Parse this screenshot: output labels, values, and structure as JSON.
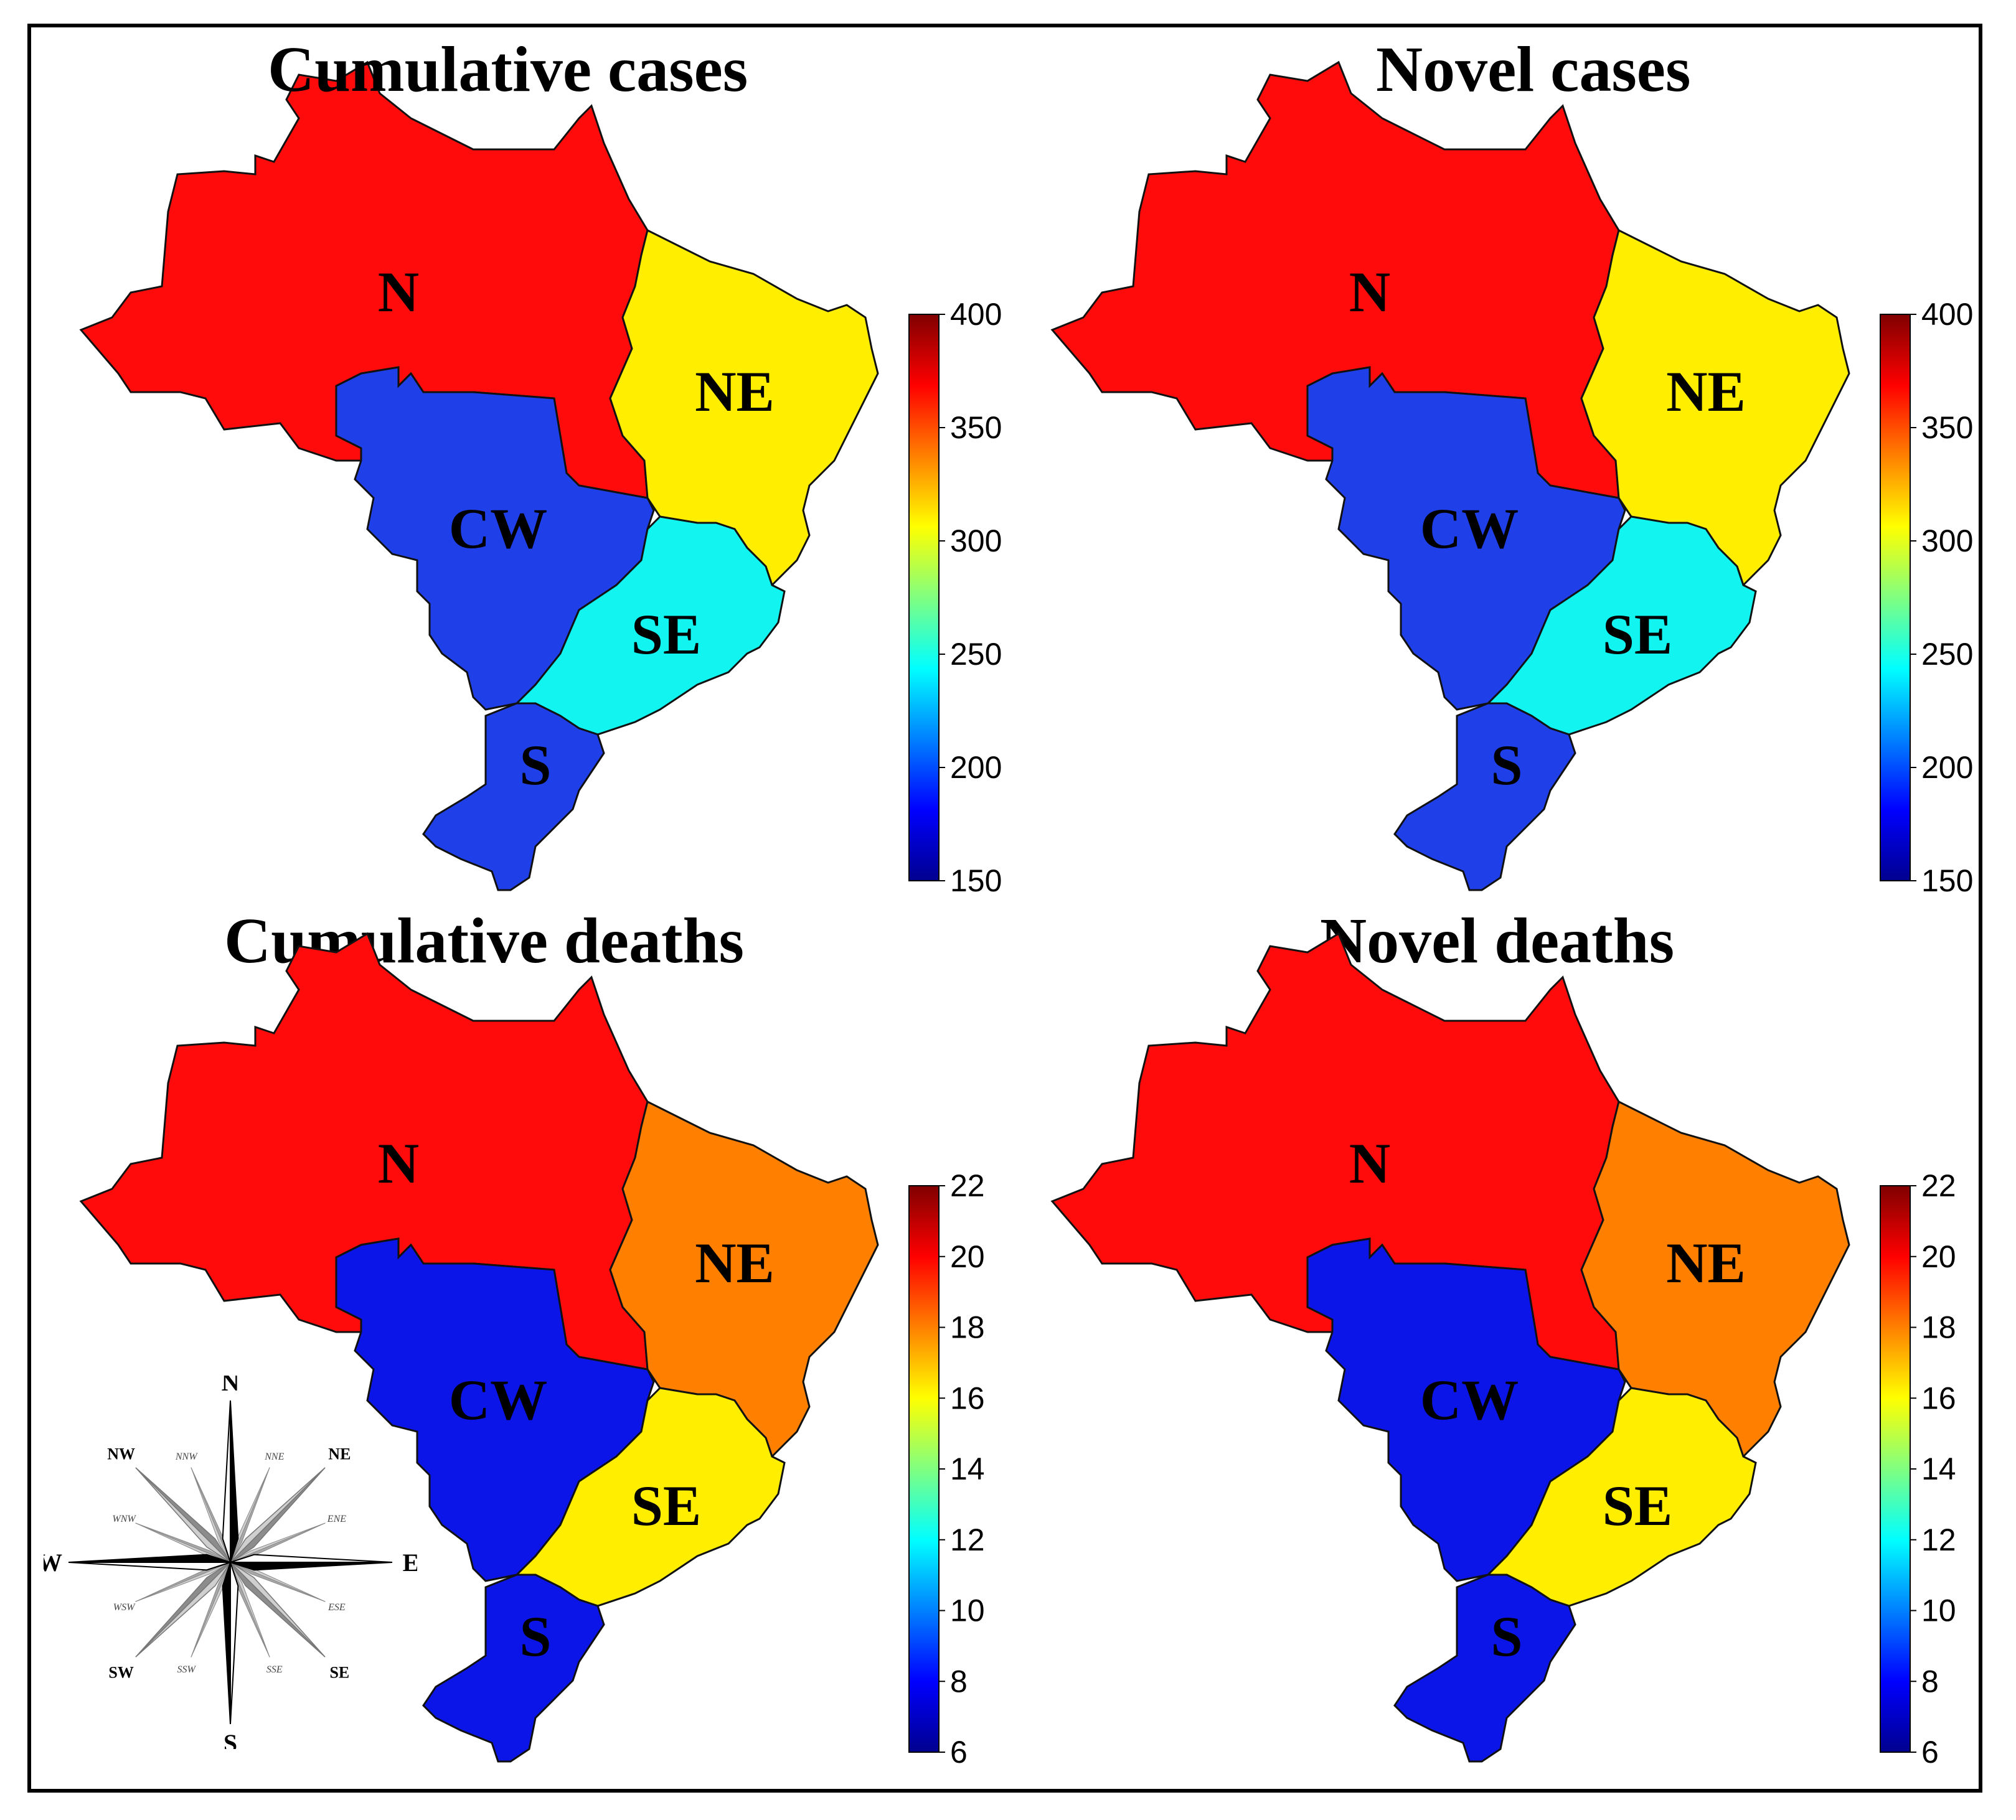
{
  "panels": [
    {
      "title": "Cumulative cases",
      "regions": [
        {
          "code": "N",
          "color": "#ff0b0b"
        },
        {
          "code": "NE",
          "color": "#ffee00"
        },
        {
          "code": "CW",
          "color": "#1f3fe8"
        },
        {
          "code": "SE",
          "color": "#12f4ef"
        },
        {
          "code": "S",
          "color": "#1f3fe8"
        }
      ],
      "colorbar": {
        "ticks": [
          "400",
          "350",
          "300",
          "250",
          "200",
          "150"
        ]
      }
    },
    {
      "title": "Novel cases",
      "regions": [
        {
          "code": "N",
          "color": "#ff0b0b"
        },
        {
          "code": "NE",
          "color": "#ffee00"
        },
        {
          "code": "CW",
          "color": "#1f3fe8"
        },
        {
          "code": "SE",
          "color": "#12f4ef"
        },
        {
          "code": "S",
          "color": "#1f3fe8"
        }
      ],
      "colorbar": {
        "ticks": [
          "400",
          "350",
          "300",
          "250",
          "200",
          "150"
        ]
      }
    },
    {
      "title": "Cumulative deaths",
      "regions": [
        {
          "code": "N",
          "color": "#ff0b0b"
        },
        {
          "code": "NE",
          "color": "#ff8000"
        },
        {
          "code": "CW",
          "color": "#0b15e8"
        },
        {
          "code": "SE",
          "color": "#ffee00"
        },
        {
          "code": "S",
          "color": "#0b15e8"
        }
      ],
      "colorbar": {
        "ticks": [
          "22",
          "20",
          "18",
          "16",
          "14",
          "12",
          "10",
          "8",
          "6"
        ]
      }
    },
    {
      "title": "Novel deaths",
      "regions": [
        {
          "code": "N",
          "color": "#ff0b0b"
        },
        {
          "code": "NE",
          "color": "#ff8000"
        },
        {
          "code": "CW",
          "color": "#0b15e8"
        },
        {
          "code": "SE",
          "color": "#ffee00"
        },
        {
          "code": "S",
          "color": "#0b15e8"
        }
      ],
      "colorbar": {
        "ticks": [
          "22",
          "20",
          "18",
          "16",
          "14",
          "12",
          "10",
          "8",
          "6"
        ]
      }
    }
  ],
  "compass": {
    "cardinal": [
      "N",
      "E",
      "S",
      "W"
    ],
    "intercardinal": [
      "NE",
      "SE",
      "SW",
      "NW"
    ],
    "minor": [
      "NNE",
      "ENE",
      "ESE",
      "SSE",
      "SSW",
      "WSW",
      "WNW",
      "NNW"
    ]
  }
}
